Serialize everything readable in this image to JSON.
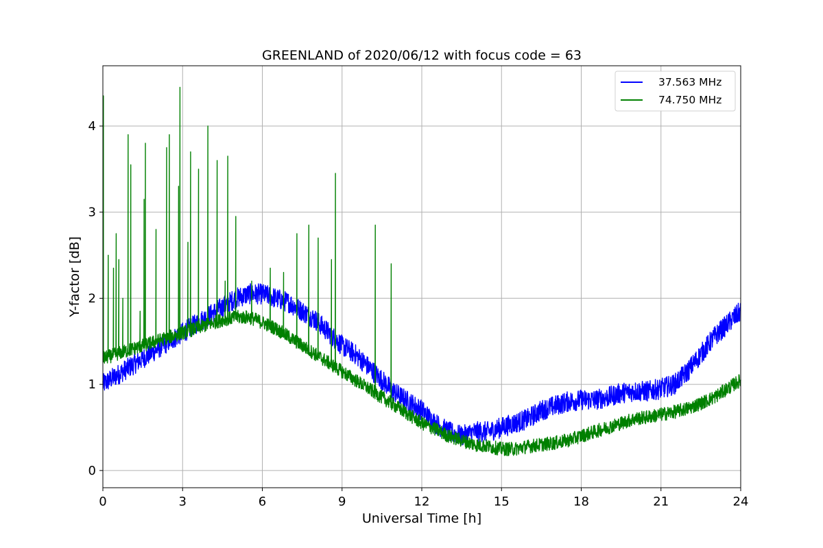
{
  "chart_data": {
    "type": "line",
    "title": "GREENLAND of 2020/06/12 with focus code = 63",
    "xlabel": "Universal Time [h]",
    "ylabel": "Y-factor [dB]",
    "xlim": [
      0,
      24
    ],
    "ylim": [
      -0.2,
      4.7
    ],
    "xticks": [
      0,
      3,
      6,
      9,
      12,
      15,
      18,
      21,
      24
    ],
    "yticks": [
      0,
      1,
      2,
      3,
      4
    ],
    "grid": true,
    "legend_position": "top-right",
    "series": [
      {
        "name": "37.563 MHz",
        "color": "#0000ff",
        "x": [
          0,
          0.5,
          1,
          1.5,
          2,
          2.5,
          3,
          3.5,
          4,
          4.5,
          5,
          5.5,
          6,
          6.5,
          7,
          7.5,
          8,
          8.5,
          9,
          9.5,
          10,
          10.5,
          11,
          11.5,
          12,
          12.5,
          13,
          13.5,
          14,
          14.5,
          15,
          15.5,
          16,
          16.5,
          17,
          17.5,
          18,
          18.5,
          19,
          19.5,
          20,
          20.5,
          21,
          21.5,
          22,
          22.5,
          23,
          23.5,
          24
        ],
        "y": [
          1.0,
          1.1,
          1.2,
          1.3,
          1.4,
          1.5,
          1.6,
          1.7,
          1.8,
          1.9,
          2.0,
          2.05,
          2.05,
          2.0,
          1.95,
          1.85,
          1.75,
          1.6,
          1.45,
          1.35,
          1.2,
          1.05,
          0.9,
          0.8,
          0.7,
          0.55,
          0.45,
          0.4,
          0.45,
          0.45,
          0.5,
          0.55,
          0.6,
          0.7,
          0.75,
          0.8,
          0.82,
          0.82,
          0.85,
          0.9,
          0.92,
          0.92,
          0.95,
          1.0,
          1.15,
          1.35,
          1.55,
          1.7,
          1.85
        ],
        "noise_amplitude": 0.12
      },
      {
        "name": "74.750 MHz",
        "color": "#008000",
        "x": [
          0,
          0.5,
          1,
          1.5,
          2,
          2.5,
          3,
          3.5,
          4,
          4.5,
          5,
          5.5,
          6,
          6.5,
          7,
          7.5,
          8,
          8.5,
          9,
          9.5,
          10,
          10.5,
          11,
          11.5,
          12,
          12.5,
          13,
          13.5,
          14,
          14.5,
          15,
          15.5,
          16,
          16.5,
          17,
          17.5,
          18,
          18.5,
          19,
          19.5,
          20,
          20.5,
          21,
          21.5,
          22,
          22.5,
          23,
          23.5,
          24
        ],
        "y": [
          1.3,
          1.35,
          1.4,
          1.45,
          1.5,
          1.55,
          1.6,
          1.65,
          1.7,
          1.75,
          1.78,
          1.78,
          1.72,
          1.65,
          1.55,
          1.45,
          1.35,
          1.25,
          1.15,
          1.05,
          0.95,
          0.85,
          0.75,
          0.65,
          0.55,
          0.48,
          0.4,
          0.35,
          0.3,
          0.28,
          0.25,
          0.25,
          0.28,
          0.3,
          0.32,
          0.35,
          0.4,
          0.45,
          0.5,
          0.55,
          0.6,
          0.62,
          0.65,
          0.68,
          0.72,
          0.78,
          0.85,
          0.95,
          1.05
        ],
        "noise_amplitude": 0.08,
        "spikes": [
          {
            "x": 0.02,
            "y": 4.35
          },
          {
            "x": 0.2,
            "y": 2.5
          },
          {
            "x": 0.4,
            "y": 2.35
          },
          {
            "x": 0.5,
            "y": 2.75
          },
          {
            "x": 0.6,
            "y": 2.45
          },
          {
            "x": 0.75,
            "y": 2.0
          },
          {
            "x": 0.95,
            "y": 3.9
          },
          {
            "x": 1.05,
            "y": 3.55
          },
          {
            "x": 1.4,
            "y": 1.85
          },
          {
            "x": 1.55,
            "y": 3.15
          },
          {
            "x": 1.6,
            "y": 3.8
          },
          {
            "x": 2.0,
            "y": 2.8
          },
          {
            "x": 2.4,
            "y": 3.75
          },
          {
            "x": 2.5,
            "y": 3.9
          },
          {
            "x": 2.85,
            "y": 3.3
          },
          {
            "x": 2.9,
            "y": 4.45
          },
          {
            "x": 3.2,
            "y": 2.65
          },
          {
            "x": 3.3,
            "y": 3.7
          },
          {
            "x": 3.6,
            "y": 3.5
          },
          {
            "x": 3.95,
            "y": 4.0
          },
          {
            "x": 4.3,
            "y": 3.6
          },
          {
            "x": 4.6,
            "y": 2.2
          },
          {
            "x": 4.7,
            "y": 3.65
          },
          {
            "x": 5.0,
            "y": 2.95
          },
          {
            "x": 5.6,
            "y": 2.2
          },
          {
            "x": 6.3,
            "y": 2.35
          },
          {
            "x": 6.8,
            "y": 2.3
          },
          {
            "x": 7.3,
            "y": 2.75
          },
          {
            "x": 7.75,
            "y": 2.85
          },
          {
            "x": 8.1,
            "y": 2.7
          },
          {
            "x": 8.6,
            "y": 2.45
          },
          {
            "x": 8.75,
            "y": 3.45
          },
          {
            "x": 10.25,
            "y": 2.85
          },
          {
            "x": 10.85,
            "y": 2.4
          }
        ]
      }
    ]
  }
}
